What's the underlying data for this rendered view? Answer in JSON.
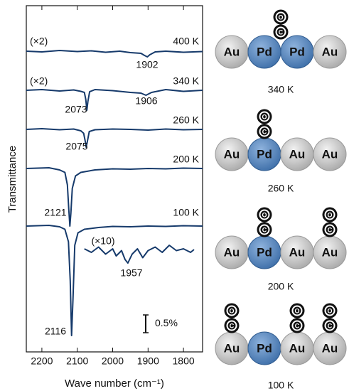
{
  "chart_data": {
    "type": "line",
    "xlabel": "Wave number (cm⁻¹)",
    "ylabel": "Transmittance",
    "xlim": [
      2244,
      1746
    ],
    "xticks": [
      2200,
      2100,
      2000,
      1900,
      1800
    ],
    "ylim": [
      0,
      9.74
    ],
    "scale_bar": {
      "value": 0.5,
      "label": "0.5%"
    },
    "series": [
      {
        "name": "400 K",
        "multiplier": "(×2)",
        "color": "#163a6b",
        "peak_labels": [
          "1902"
        ],
        "x": [
          2244,
          2200,
          2150,
          2100,
          2060,
          2020,
          1980,
          1950,
          1920,
          1910,
          1902,
          1895,
          1880,
          1850,
          1800,
          1746
        ],
        "values": [
          8.46,
          8.44,
          8.48,
          8.45,
          8.47,
          8.43,
          8.46,
          8.42,
          8.4,
          8.34,
          8.3,
          8.36,
          8.44,
          8.46,
          8.43,
          8.45
        ]
      },
      {
        "name": "340 K",
        "multiplier": "(×2)",
        "color": "#163a6b",
        "peak_labels": [
          "2073",
          "1906"
        ],
        "x": [
          2244,
          2200,
          2150,
          2110,
          2090,
          2080,
          2076,
          2073,
          2070,
          2065,
          2050,
          2000,
          1950,
          1920,
          1906,
          1890,
          1850,
          1800,
          1746
        ],
        "values": [
          7.36,
          7.38,
          7.34,
          7.37,
          7.33,
          7.3,
          7.1,
          6.8,
          7.05,
          7.32,
          7.38,
          7.35,
          7.3,
          7.28,
          7.22,
          7.3,
          7.38,
          7.33,
          7.36
        ]
      },
      {
        "name": "260 K",
        "color": "#163a6b",
        "peak_labels": [
          "2075"
        ],
        "x": [
          2244,
          2200,
          2150,
          2110,
          2090,
          2082,
          2078,
          2075,
          2072,
          2066,
          2050,
          2000,
          1950,
          1900,
          1850,
          1800,
          1746
        ],
        "values": [
          6.26,
          6.28,
          6.25,
          6.27,
          6.22,
          6.15,
          5.95,
          5.76,
          5.9,
          6.2,
          6.25,
          6.27,
          6.26,
          6.24,
          6.27,
          6.25,
          6.26
        ]
      },
      {
        "name": "200 K",
        "color": "#163a6b",
        "peak_labels": [
          "2121"
        ],
        "x": [
          2244,
          2180,
          2150,
          2135,
          2128,
          2124,
          2121,
          2118,
          2114,
          2105,
          2090,
          2050,
          2000,
          1950,
          1900,
          1850,
          1800,
          1746
        ],
        "values": [
          5.16,
          5.18,
          5.12,
          5.05,
          4.7,
          4.0,
          3.54,
          3.9,
          4.6,
          4.95,
          5.05,
          5.12,
          5.15,
          5.14,
          5.16,
          5.15,
          5.17,
          5.16
        ]
      },
      {
        "name": "100 K",
        "color": "#163a6b",
        "peak_labels": [
          "2116"
        ],
        "x": [
          2244,
          2180,
          2150,
          2135,
          2125,
          2120,
          2116,
          2112,
          2107,
          2098,
          2080,
          2040,
          2000,
          1950,
          1900,
          1850,
          1800,
          1746
        ],
        "values": [
          3.54,
          3.56,
          3.52,
          3.45,
          3.1,
          2.0,
          0.46,
          1.5,
          3.0,
          3.35,
          3.45,
          3.5,
          3.53,
          3.52,
          3.54,
          3.53,
          3.55,
          3.54
        ]
      },
      {
        "name": "(×10)",
        "color": "#163a6b",
        "peak_labels": [
          "1957"
        ],
        "x": [
          2080,
          2060,
          2040,
          2020,
          2000,
          1990,
          1975,
          1965,
          1957,
          1945,
          1930,
          1915,
          1900,
          1880,
          1860,
          1840,
          1820,
          1800,
          1780,
          1770
        ],
        "values": [
          2.9,
          2.8,
          2.95,
          2.75,
          2.9,
          2.7,
          2.85,
          2.6,
          2.5,
          2.75,
          2.9,
          2.65,
          2.85,
          2.95,
          2.8,
          3.0,
          2.85,
          2.9,
          2.8,
          2.88
        ]
      }
    ],
    "schematics": [
      {
        "caption": "340 K",
        "atoms": [
          "Au",
          "Pd",
          "Pd",
          "Au"
        ],
        "co_sites": [
          1.5
        ]
      },
      {
        "caption": "260 K",
        "atoms": [
          "Au",
          "Pd",
          "Au",
          "Au"
        ],
        "co_sites": [
          1
        ]
      },
      {
        "caption": "200 K",
        "atoms": [
          "Au",
          "Pd",
          "Au",
          "Au"
        ],
        "co_sites": [
          1,
          3
        ]
      },
      {
        "caption": "100 K",
        "atoms": [
          "Au",
          "Pd",
          "Au",
          "Au"
        ],
        "co_sites": [
          0,
          2,
          3
        ]
      }
    ],
    "co_labels": [
      "O",
      "C"
    ]
  }
}
